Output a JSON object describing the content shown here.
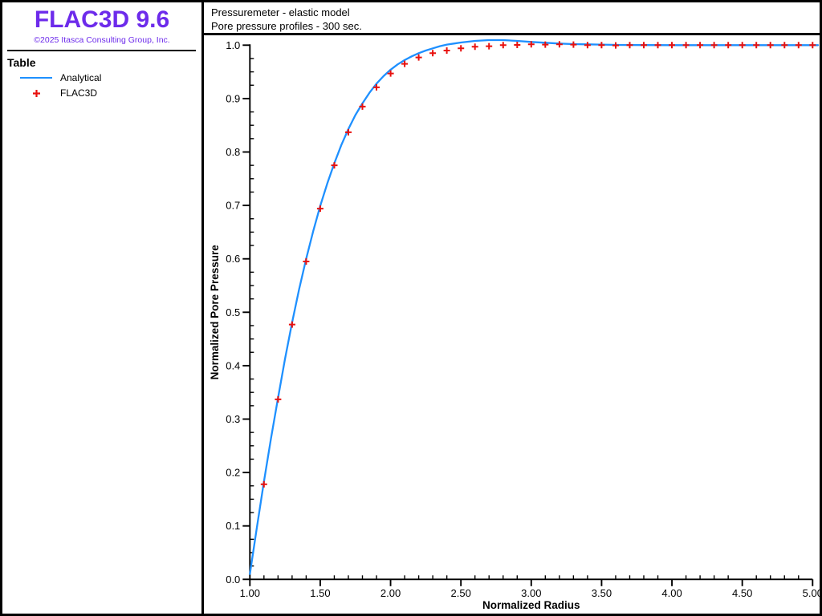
{
  "sidebar": {
    "logo": {
      "title": "FLAC3D 9.6",
      "copyright": "©2025 Itasca Consulting Group, Inc.",
      "color": "#6D2BEB"
    },
    "legend": {
      "heading": "Table",
      "items": [
        {
          "label": "Analytical",
          "marker": "line",
          "color": "#1E90FF"
        },
        {
          "label": "FLAC3D",
          "marker": "plus",
          "color": "#E8110E"
        }
      ]
    }
  },
  "chart_header": {
    "line1": "Pressuremeter - elastic model",
    "line2": "Pore pressure profiles - 300 sec."
  },
  "chart_data": {
    "type": "line",
    "title": "Pressuremeter - elastic model — Pore pressure profiles - 300 sec.",
    "xlabel": "Normalized Radius",
    "ylabel": "Normalized Pore Pressure",
    "xlim": [
      1.0,
      5.0
    ],
    "ylim": [
      0.0,
      1.0
    ],
    "grid": false,
    "legend_position": "left-panel",
    "x_major_ticks": {
      "values": [
        1.0,
        1.5,
        2.0,
        2.5,
        3.0,
        3.5,
        4.0,
        4.5,
        5.0
      ],
      "labels": [
        "1.00",
        "1.50",
        "2.00",
        "2.50",
        "3.00",
        "3.50",
        "4.00",
        "4.50",
        "5.00"
      ]
    },
    "x_minor_step": 0.1,
    "y_major_ticks": {
      "values": [
        0.0,
        0.1,
        0.2,
        0.3,
        0.4,
        0.5,
        0.6,
        0.7,
        0.8,
        0.9,
        1.0
      ],
      "labels": [
        "0.0",
        "0.1",
        "0.2",
        "0.3",
        "0.4",
        "0.5",
        "0.6",
        "0.7",
        "0.8",
        "0.9",
        "1.0"
      ]
    },
    "y_minor_step": 0.025,
    "series": [
      {
        "name": "Analytical",
        "type": "line",
        "color": "#1E90FF",
        "x": [
          1.0,
          1.05,
          1.1,
          1.15,
          1.2,
          1.25,
          1.3,
          1.35,
          1.4,
          1.45,
          1.5,
          1.55,
          1.6,
          1.65,
          1.7,
          1.75,
          1.8,
          1.85,
          1.9,
          1.95,
          2.0,
          2.05,
          2.1,
          2.15,
          2.2,
          2.25,
          2.3,
          2.35,
          2.4,
          2.45,
          2.5,
          2.6,
          2.7,
          2.8,
          2.9,
          3.0,
          3.1,
          3.2,
          3.3,
          3.4,
          3.5,
          3.6,
          3.8,
          4.0,
          4.25,
          4.5,
          4.75,
          5.0
        ],
        "y": [
          0.01,
          0.098,
          0.183,
          0.264,
          0.34,
          0.413,
          0.481,
          0.543,
          0.6,
          0.652,
          0.699,
          0.741,
          0.779,
          0.813,
          0.843,
          0.869,
          0.891,
          0.911,
          0.928,
          0.942,
          0.954,
          0.964,
          0.972,
          0.979,
          0.985,
          0.99,
          0.994,
          0.998,
          1.001,
          1.003,
          1.005,
          1.008,
          1.0095,
          1.0095,
          1.008,
          1.006,
          1.0045,
          1.003,
          1.002,
          1.0015,
          1.001,
          1.0005,
          1.0002,
          1.0,
          1.0,
          1.0,
          1.0,
          1.0
        ]
      },
      {
        "name": "FLAC3D",
        "type": "scatter",
        "marker": "plus",
        "color": "#E8110E",
        "x": [
          1.1,
          1.2,
          1.3,
          1.4,
          1.5,
          1.6,
          1.7,
          1.8,
          1.9,
          2.0,
          2.1,
          2.2,
          2.3,
          2.4,
          2.5,
          2.6,
          2.7,
          2.8,
          2.9,
          3.0,
          3.1,
          3.2,
          3.3,
          3.4,
          3.5,
          3.6,
          3.7,
          3.8,
          3.9,
          4.0,
          4.1,
          4.2,
          4.3,
          4.4,
          4.5,
          4.6,
          4.7,
          4.8,
          4.9,
          5.0
        ],
        "y": [
          0.178,
          0.337,
          0.477,
          0.595,
          0.694,
          0.775,
          0.837,
          0.885,
          0.921,
          0.947,
          0.965,
          0.977,
          0.985,
          0.99,
          0.994,
          0.997,
          0.998,
          1.0,
          1.0005,
          1.0015,
          1.001,
          1.0015,
          1.001,
          1.0,
          1.0,
          0.9995,
          1.0,
          1.0,
          1.0,
          1.0,
          1.0,
          1.0,
          1.0,
          1.0,
          1.0,
          1.0,
          1.0,
          1.0,
          1.0,
          1.0
        ]
      }
    ]
  }
}
